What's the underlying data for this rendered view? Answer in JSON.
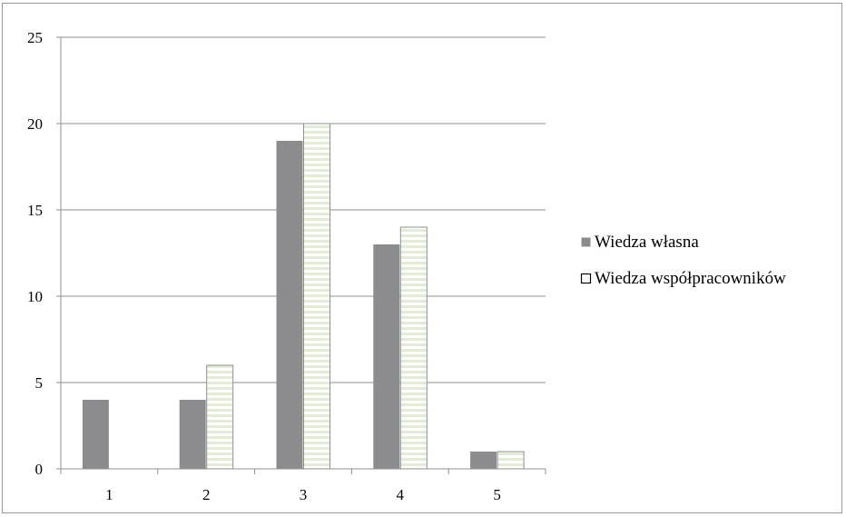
{
  "chart_data": {
    "type": "bar",
    "categories": [
      "1",
      "2",
      "3",
      "4",
      "5"
    ],
    "series": [
      {
        "name": "Wiedza własna",
        "values": [
          4,
          4,
          19,
          13,
          1
        ],
        "color": "#8c8c8e",
        "pattern": "solid"
      },
      {
        "name": "Wiedza współpracowników",
        "values": [
          0,
          6,
          20,
          14,
          1
        ],
        "color": "#e3edd5",
        "pattern": "horizontal-stripes"
      }
    ],
    "title": "",
    "xlabel": "",
    "ylabel": "",
    "ylim": [
      0,
      25
    ],
    "yticks": [
      "0",
      "5",
      "10",
      "15",
      "20",
      "25"
    ],
    "grid": true,
    "legend_position": "right"
  }
}
